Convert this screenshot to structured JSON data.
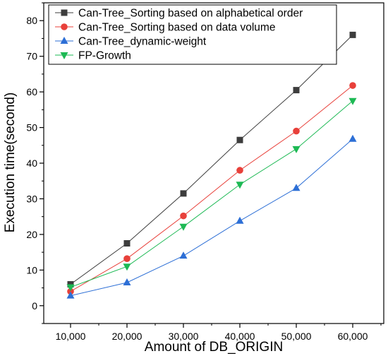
{
  "chart_data": {
    "type": "line",
    "title": "",
    "xlabel": "Amount of DB_ORIGIN",
    "ylabel": "Execution time(second)",
    "categories": [
      "10,000",
      "20,000",
      "30,000",
      "40,000",
      "50,000",
      "60,000"
    ],
    "ylim": [
      -5,
      85
    ],
    "yticks": [
      0,
      10,
      20,
      30,
      40,
      50,
      60,
      70,
      80
    ],
    "grid": false,
    "legend_position": "top-left",
    "series": [
      {
        "name": "Can-Tree_Sorting based on alphabetical order",
        "color": "#3d3d3d",
        "marker": "square",
        "values": [
          6.0,
          17.5,
          31.5,
          46.5,
          60.5,
          76.0
        ]
      },
      {
        "name": "Can-Tree_Sorting based on data volume",
        "color": "#e8403a",
        "marker": "circle",
        "values": [
          4.0,
          13.2,
          25.2,
          38.0,
          49.0,
          61.8
        ]
      },
      {
        "name": "Can-Tree_dynamic-weight",
        "color": "#2d6fd6",
        "marker": "triangle-up",
        "values": [
          2.8,
          6.5,
          14.0,
          23.8,
          33.0,
          46.8
        ]
      },
      {
        "name": "FP-Growth",
        "color": "#1db954",
        "marker": "triangle-down",
        "values": [
          5.2,
          11.0,
          22.2,
          34.0,
          44.0,
          57.5
        ]
      }
    ]
  }
}
